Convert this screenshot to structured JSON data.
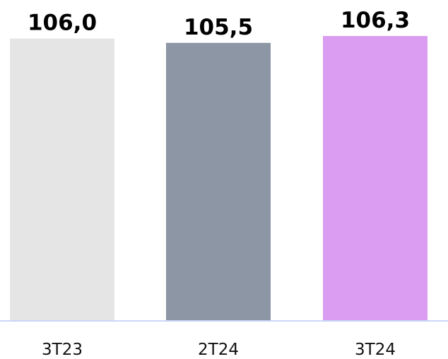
{
  "chart_data": {
    "type": "bar",
    "title": "",
    "xlabel": "",
    "ylabel": "",
    "categories": [
      "3T23",
      "2T24",
      "3T24"
    ],
    "values": [
      106.0,
      105.5,
      106.3
    ],
    "value_labels": [
      "106,0",
      "105,5",
      "106,3"
    ],
    "ylim": [
      0,
      106.3
    ],
    "grid": false,
    "legend": "none",
    "colors": [
      "#e5e5e5",
      "#8c96a4",
      "#da9df1"
    ],
    "axis_color": "#c9d6f6"
  }
}
